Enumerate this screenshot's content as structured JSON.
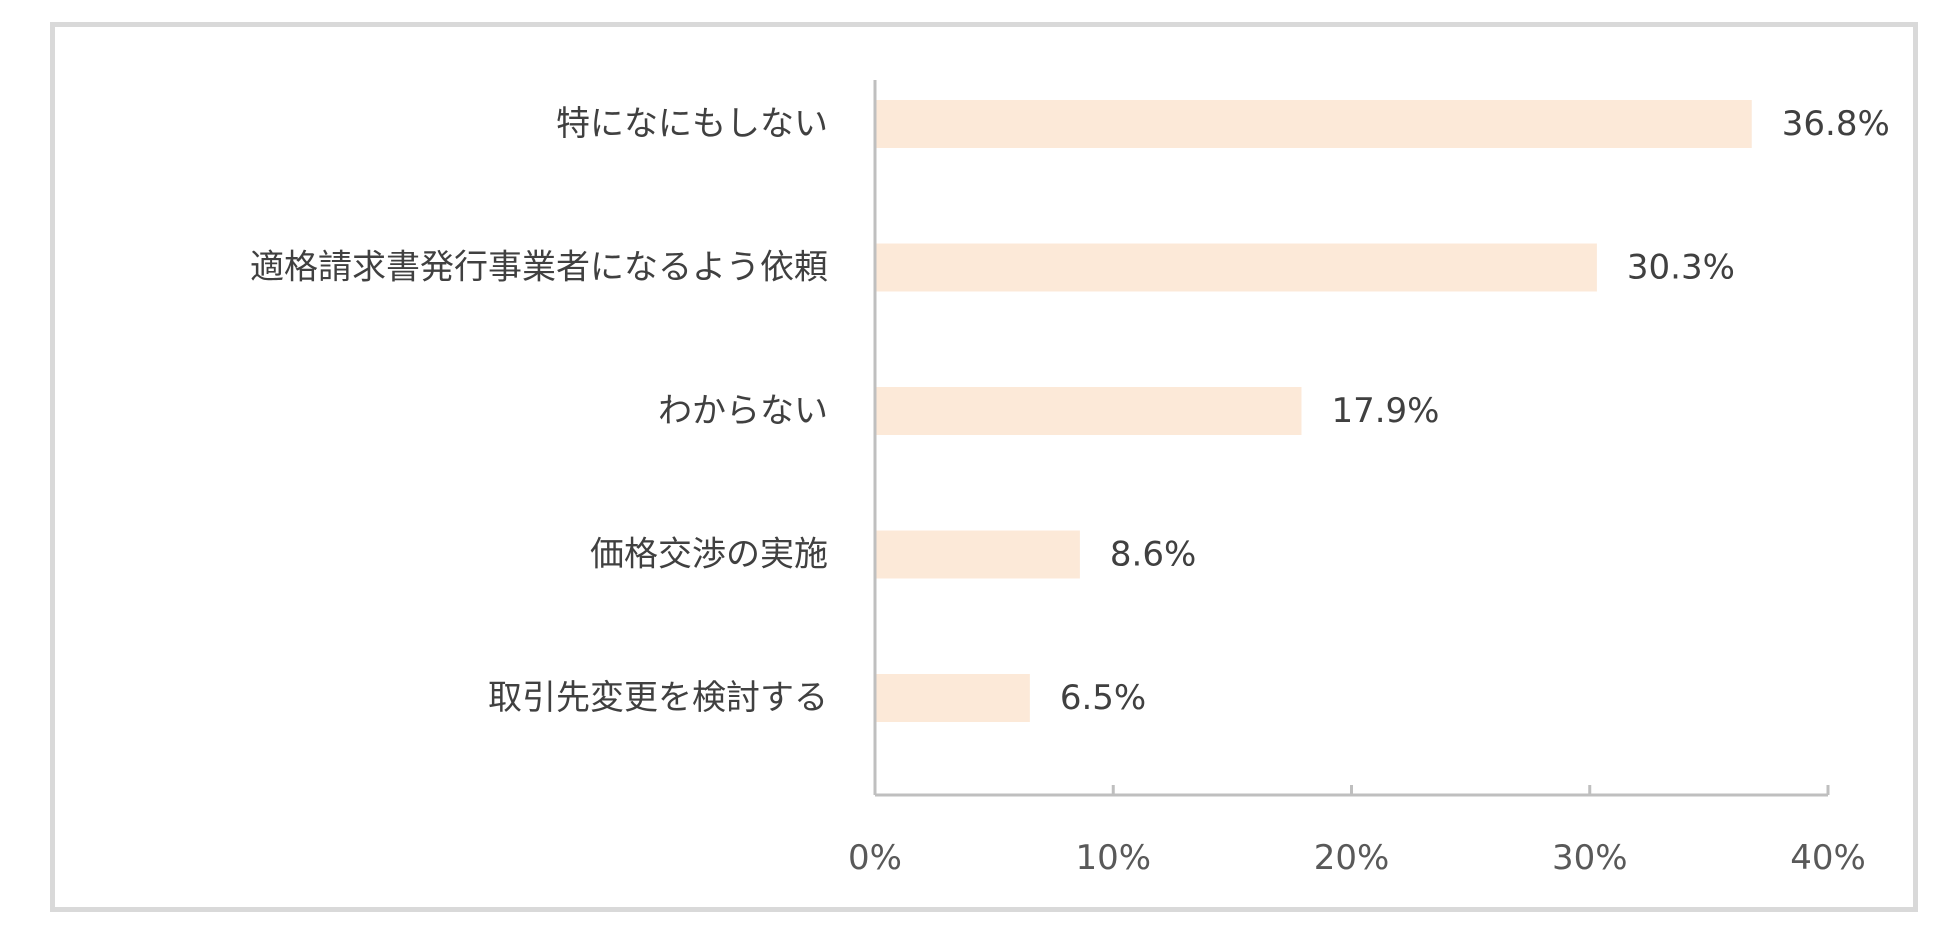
{
  "chart_data": {
    "type": "bar",
    "orientation": "horizontal",
    "categories": [
      "特になにもしない",
      "適格請求書発行事業者になるよう依頼",
      "わからない",
      "価格交渉の実施",
      "取引先変更を検討する"
    ],
    "values": [
      36.8,
      30.3,
      17.9,
      8.6,
      6.5
    ],
    "value_labels": [
      "36.8%",
      "30.3%",
      "17.9%",
      "8.6%",
      "6.5%"
    ],
    "xlim": [
      0,
      40
    ],
    "x_ticks": [
      0,
      10,
      20,
      30,
      40
    ],
    "x_tick_labels": [
      "0%",
      "10%",
      "20%",
      "30%",
      "40%"
    ],
    "title": "",
    "xlabel": "",
    "ylabel": "",
    "grid": false,
    "legend": "none",
    "colors": {
      "bar": "#fce9d8",
      "axis": "#bfbfbf",
      "frame": "#d9d9d9",
      "text": "#404040"
    }
  }
}
